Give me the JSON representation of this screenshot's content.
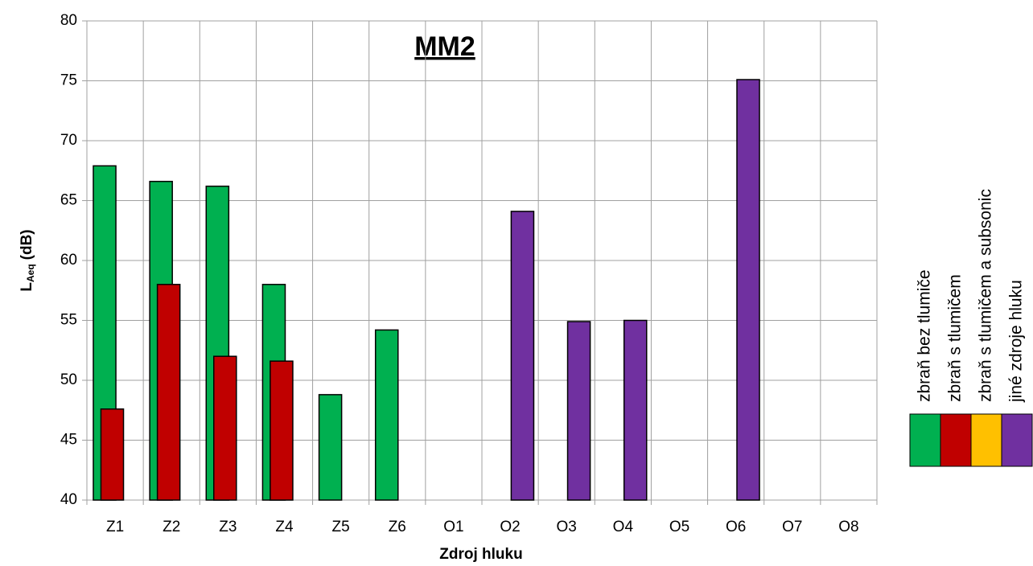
{
  "chart_data": {
    "type": "bar",
    "title": "MM2",
    "x_label": "Zdroj hluku",
    "y_label": "L",
    "y_label_sub": "Aeq",
    "y_label_unit": "(dB)",
    "categories": [
      "Z1",
      "Z2",
      "Z3",
      "Z4",
      "Z5",
      "Z6",
      "O1",
      "O2",
      "O3",
      "O4",
      "O5",
      "O6",
      "O7",
      "O8"
    ],
    "series": [
      {
        "name": "zbraň bez tlumiče",
        "color": "#00b050",
        "values": [
          67.9,
          66.6,
          66.2,
          58,
          48.8,
          54.2,
          null,
          null,
          null,
          null,
          null,
          null,
          null,
          null
        ]
      },
      {
        "name": "zbraň s tlumičem",
        "color": "#c00000",
        "values": [
          47.6,
          58,
          52,
          51.6,
          null,
          null,
          null,
          null,
          null,
          null,
          null,
          null,
          null,
          null
        ]
      },
      {
        "name": "zbraň s tlumičem a subsonic",
        "color": "#ffc000",
        "values": [
          null,
          null,
          null,
          null,
          null,
          null,
          null,
          null,
          null,
          null,
          null,
          null,
          null,
          null
        ]
      },
      {
        "name": "jiné zdroje hluku",
        "color": "#7030a0",
        "values": [
          null,
          null,
          null,
          null,
          null,
          null,
          null,
          64.1,
          54.9,
          55,
          null,
          75.1,
          null,
          null
        ]
      }
    ],
    "ylim": [
      40,
      80
    ],
    "yticks": [
      40,
      45,
      50,
      55,
      60,
      65,
      70,
      75,
      80
    ],
    "grid": true,
    "legend_position": "right"
  }
}
